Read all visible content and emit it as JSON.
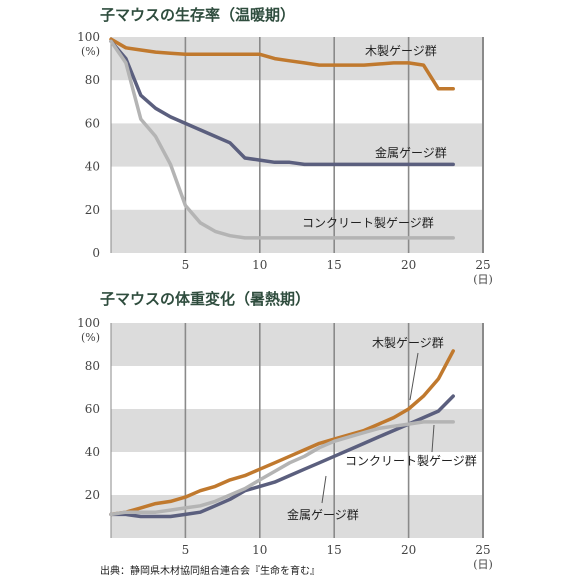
{
  "source": "出典：静岡県木材協同組合連合会『生命を育む』",
  "colors": {
    "wood": "#c0792e",
    "metal": "#5b5f7e",
    "concrete": "#b4b4b4",
    "band": "#dcdcdc",
    "gridline": "#8a8a8a"
  },
  "chart_data": [
    {
      "type": "line",
      "title": "子マウスの生存率（温暖期）",
      "xlabel": "(日)",
      "ylabel": "(%)",
      "xlim": [
        0,
        25
      ],
      "ylim": [
        0,
        100
      ],
      "x_ticks": [
        5,
        10,
        15,
        20,
        25
      ],
      "y_ticks": [
        0,
        20,
        40,
        60,
        80,
        100
      ],
      "grid": true,
      "series": [
        {
          "name": "木製ゲージ群",
          "key": "wood",
          "x": [
            0,
            1,
            2,
            3,
            4,
            5,
            6,
            7,
            8,
            9,
            10,
            11,
            12,
            13,
            14,
            15,
            16,
            17,
            18,
            19,
            20,
            21,
            22,
            23
          ],
          "y": [
            99,
            95,
            94,
            93,
            92.5,
            92,
            92,
            92,
            92,
            92,
            92,
            90,
            89,
            88,
            87,
            87,
            87,
            87,
            87.5,
            88,
            88,
            87,
            76,
            76
          ]
        },
        {
          "name": "金属ゲージ群",
          "key": "metal",
          "x": [
            0,
            1,
            2,
            3,
            4,
            5,
            6,
            7,
            8,
            9,
            10,
            11,
            12,
            13,
            14,
            15,
            16,
            17,
            18,
            19,
            20,
            21,
            22,
            23
          ],
          "y": [
            98,
            90,
            73,
            67,
            63,
            60,
            57,
            54,
            51,
            44,
            43,
            42,
            42,
            41,
            41,
            41,
            41,
            41,
            41,
            41,
            41,
            41,
            41,
            41
          ]
        },
        {
          "name": "コンクリート製ゲージ群",
          "key": "concrete",
          "x": [
            0,
            1,
            2,
            3,
            4,
            5,
            6,
            7,
            8,
            9,
            10,
            11,
            12,
            13,
            14,
            15,
            16,
            17,
            18,
            19,
            20,
            21,
            22,
            23
          ],
          "y": [
            98,
            88,
            62,
            54,
            41,
            22,
            14,
            10,
            8,
            7,
            7,
            7,
            7,
            7,
            7,
            7,
            7,
            7,
            7,
            7,
            7,
            7,
            7,
            7
          ]
        }
      ]
    },
    {
      "type": "line",
      "title": "子マウスの体重変化（暑熱期）",
      "xlabel": "(日)",
      "ylabel": "(%)",
      "xlim": [
        0,
        25
      ],
      "ylim": [
        0,
        100
      ],
      "x_ticks": [
        5,
        10,
        15,
        20,
        25
      ],
      "y_ticks": [
        20,
        40,
        60,
        80,
        100
      ],
      "grid": true,
      "series": [
        {
          "name": "木製ゲージ群",
          "key": "wood",
          "x": [
            0,
            1,
            2,
            3,
            4,
            5,
            6,
            7,
            8,
            9,
            10,
            11,
            12,
            13,
            14,
            15,
            16,
            17,
            18,
            19,
            20,
            21,
            22,
            23
          ],
          "y": [
            11,
            12,
            14,
            16,
            17,
            19,
            22,
            24,
            27,
            29,
            32,
            35,
            38,
            41,
            44,
            46,
            48,
            50,
            53,
            56,
            60,
            66,
            74,
            87
          ]
        },
        {
          "name": "金属ゲージ群",
          "key": "metal",
          "x": [
            0,
            1,
            2,
            3,
            4,
            5,
            6,
            7,
            8,
            9,
            10,
            11,
            12,
            13,
            14,
            15,
            16,
            17,
            18,
            19,
            20,
            21,
            22,
            23
          ],
          "y": [
            11,
            11,
            10,
            10,
            10,
            11,
            12,
            15,
            18,
            22,
            24,
            26,
            29,
            32,
            35,
            38,
            41,
            44,
            47,
            50,
            53,
            56,
            59,
            66
          ]
        },
        {
          "name": "コンクリート製ゲージ群",
          "key": "concrete",
          "x": [
            0,
            1,
            2,
            3,
            4,
            5,
            6,
            7,
            8,
            9,
            10,
            11,
            12,
            13,
            14,
            15,
            16,
            17,
            18,
            19,
            20,
            21,
            22,
            23
          ],
          "y": [
            11,
            12,
            12,
            12,
            13,
            14,
            15,
            17,
            20,
            23,
            27,
            31,
            35,
            38,
            42,
            45,
            47,
            49,
            51,
            52,
            53,
            54,
            54,
            54
          ]
        }
      ]
    }
  ]
}
